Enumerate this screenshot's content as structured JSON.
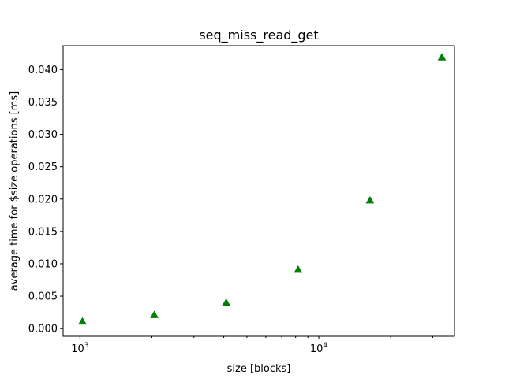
{
  "chart_data": {
    "type": "scatter",
    "title": "seq_miss_read_get",
    "xlabel": "size [blocks]",
    "ylabel": "average time for $size operations [ms]",
    "xscale": "log",
    "xlim": [
      850,
      37000
    ],
    "ylim": [
      -0.0012,
      0.0437
    ],
    "x_ticks": [
      {
        "value": 1000,
        "base": "10",
        "exp": "3"
      },
      {
        "value": 10000,
        "base": "10",
        "exp": "4"
      }
    ],
    "y_ticks": [
      "0.000",
      "0.005",
      "0.010",
      "0.015",
      "0.020",
      "0.025",
      "0.030",
      "0.035",
      "0.040"
    ],
    "grid": false,
    "legend": "none",
    "marker": "triangle-up",
    "color": "#008000",
    "series": [
      {
        "x": [
          1024,
          2048,
          4096,
          8192,
          16384,
          32768
        ],
        "y": [
          0.0011,
          0.0021,
          0.004,
          0.0091,
          0.0198,
          0.0419
        ]
      }
    ]
  }
}
